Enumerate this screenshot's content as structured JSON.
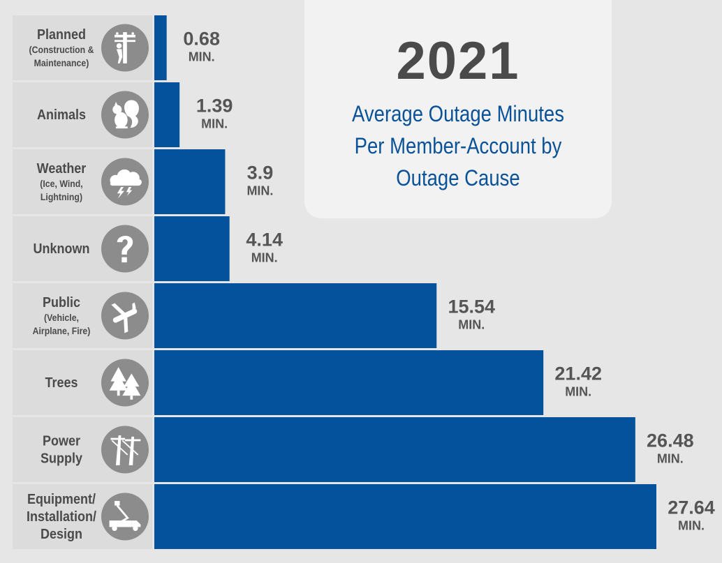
{
  "title": {
    "year": "2021",
    "subtitle": "Average Outage Minutes Per Member-Account by Outage Cause"
  },
  "colors": {
    "bar": "#03529b",
    "label_bg": "#dcdcdc",
    "icon_circle": "#8c8c8c",
    "value_text": "#555555",
    "label_text": "#4a4a4a",
    "subtitle_text": "#0a5298"
  },
  "chart_data": {
    "type": "bar",
    "orientation": "horizontal",
    "title": "2021",
    "subtitle": "Average Outage Minutes Per Member-Account by Outage Cause",
    "unit_label": "MIN.",
    "xlim": [
      0,
      27.64
    ],
    "grid": false,
    "categories": [
      {
        "label_lines": [
          "Planned"
        ],
        "note_lines": [
          "(Construction &",
          "Maintenance)"
        ],
        "icon": "utility-pole-worker-icon",
        "value": 0.68,
        "value_text": "0.68"
      },
      {
        "label_lines": [
          "Animals"
        ],
        "note_lines": [],
        "icon": "squirrel-icon",
        "value": 1.39,
        "value_text": "1.39"
      },
      {
        "label_lines": [
          "Weather"
        ],
        "note_lines": [
          "(Ice, Wind,",
          "Lightning)"
        ],
        "icon": "storm-cloud-icon",
        "value": 3.9,
        "value_text": "3.9"
      },
      {
        "label_lines": [
          "Unknown"
        ],
        "note_lines": [],
        "icon": "question-mark-icon",
        "value": 4.14,
        "value_text": "4.14"
      },
      {
        "label_lines": [
          "Public"
        ],
        "note_lines": [
          "(Vehicle,",
          "Airplane, Fire)"
        ],
        "icon": "airplane-icon",
        "value": 15.54,
        "value_text": "15.54"
      },
      {
        "label_lines": [
          "Trees"
        ],
        "note_lines": [],
        "icon": "trees-icon",
        "value": 21.42,
        "value_text": "21.42"
      },
      {
        "label_lines": [
          "Power",
          "Supply"
        ],
        "note_lines": [],
        "icon": "transmission-tower-icon",
        "value": 26.48,
        "value_text": "26.48"
      },
      {
        "label_lines": [
          "Equipment/",
          "Installation/",
          "Design"
        ],
        "note_lines": [],
        "icon": "bucket-truck-icon",
        "value": 27.64,
        "value_text": "27.64"
      }
    ]
  }
}
